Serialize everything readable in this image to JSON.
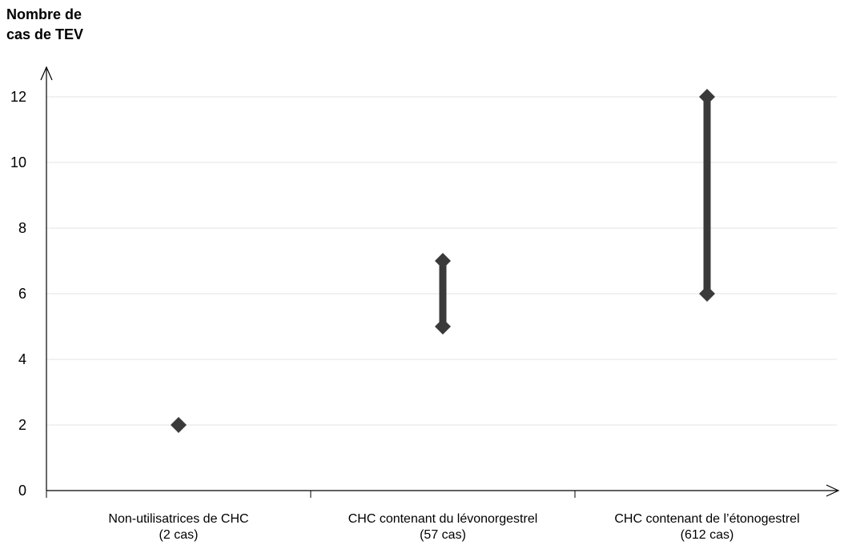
{
  "chart_data": {
    "type": "range",
    "ylabel_lines": [
      "Nombre de",
      "cas de TEV"
    ],
    "xlabel": "",
    "ylim": [
      0,
      12.8
    ],
    "yticks": [
      0,
      2,
      4,
      6,
      8,
      10,
      12
    ],
    "grid": true,
    "categories": [
      {
        "lines": [
          "Non-utilisatrices de CHC",
          "(2 cas)"
        ]
      },
      {
        "lines": [
          "CHC contenant du lévonorgestrel",
          "(57 cas)"
        ]
      },
      {
        "lines": [
          "CHC contenant de l’étonogestrel",
          "(612 cas)"
        ]
      }
    ],
    "series": [
      {
        "low": 2,
        "high": 2
      },
      {
        "low": 5,
        "high": 7
      },
      {
        "low": 6,
        "high": 12
      }
    ],
    "colors": {
      "mark": "#3a3a3a",
      "grid": "#e3e3e3",
      "axis": "#000000"
    }
  }
}
